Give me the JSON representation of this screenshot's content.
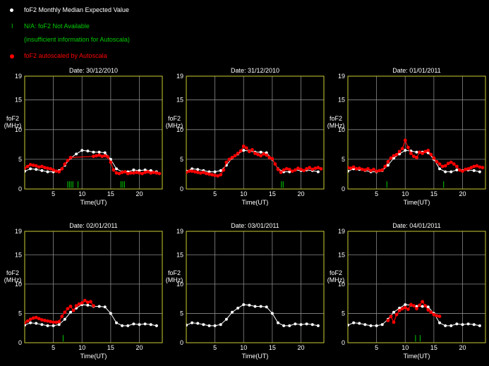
{
  "legend": {
    "median_label": "foF2 Monthly Median Expected Value",
    "na_label": "N/A: foF2 Not Available",
    "na_sub_label": "(insufficient information for Autoscala)",
    "auto_label": "foF2 autoscaled by Autoscala",
    "na_symbol": "I"
  },
  "colors": {
    "median": "#ffffff",
    "autoscaled": "#ff0000",
    "not_available": "#00cc00",
    "axis": "#cccc33",
    "grid": "#8a8a8a",
    "background": "#000000"
  },
  "chart_data": [
    {
      "type": "scatter",
      "title": "Date: 30/12/2010",
      "ylabel": "foF2 (MHz)",
      "xlabel": "Time(UT)",
      "xlim": [
        0,
        24
      ],
      "ylim": [
        0,
        19
      ],
      "xticks": [
        5,
        10,
        15,
        20
      ],
      "yticks": [
        0,
        5,
        10,
        15,
        19
      ],
      "grid": true,
      "series": [
        {
          "name": "foF2 Monthly Median Expected Value",
          "x": [
            0,
            1,
            2,
            3,
            4,
            5,
            6,
            7,
            8,
            9,
            10,
            11,
            12,
            13,
            14,
            15,
            16,
            17,
            18,
            19,
            20,
            21,
            22,
            23
          ],
          "y": [
            3.0,
            3.4,
            3.3,
            3.1,
            2.9,
            2.9,
            3.1,
            4.0,
            5.2,
            5.9,
            6.5,
            6.4,
            6.2,
            6.2,
            6.1,
            5.0,
            3.4,
            2.9,
            2.9,
            3.2,
            3.1,
            3.2,
            3.1,
            2.9
          ]
        },
        {
          "name": "foF2 autoscaled by Autoscala",
          "x": [
            0,
            0.5,
            1,
            1.5,
            2,
            2.5,
            3,
            3.5,
            4,
            4.5,
            5,
            5.5,
            6,
            6.5,
            7,
            7.5,
            8,
            12,
            12.5,
            13,
            13.5,
            14,
            14.5,
            15,
            15.5,
            16,
            16.5,
            17,
            17.5,
            18,
            18.5,
            19,
            19.5,
            20,
            20.5,
            21,
            21.5,
            22,
            22.5,
            23,
            23.5
          ],
          "y": [
            3.5,
            3.8,
            4.1,
            4.0,
            3.9,
            3.7,
            3.8,
            3.6,
            3.5,
            3.4,
            3.2,
            3.0,
            2.9,
            3.4,
            4.2,
            4.8,
            5.3,
            5.5,
            5.6,
            5.7,
            5.5,
            5.6,
            5.4,
            4.5,
            3.2,
            2.7,
            2.6,
            2.8,
            2.9,
            2.6,
            2.7,
            2.7,
            2.8,
            2.7,
            2.6,
            2.8,
            2.9,
            2.7,
            2.8,
            2.7,
            2.6
          ]
        },
        {
          "name": "N/A: foF2 Not Available",
          "x": [
            7.5,
            7.8,
            8.1,
            8.4,
            9.3,
            16.8,
            17.1,
            17.4
          ]
        }
      ]
    },
    {
      "type": "scatter",
      "title": "Date: 31/12/2010",
      "ylabel": "foF2 (MHz)",
      "xlabel": "Time(UT)",
      "xlim": [
        0,
        24
      ],
      "ylim": [
        0,
        19
      ],
      "xticks": [
        5,
        10,
        15,
        20
      ],
      "yticks": [
        0,
        5,
        10,
        15,
        19
      ],
      "grid": true,
      "series": [
        {
          "name": "foF2 Monthly Median Expected Value",
          "x": [
            0,
            1,
            2,
            3,
            4,
            5,
            6,
            7,
            8,
            9,
            10,
            11,
            12,
            13,
            14,
            15,
            16,
            17,
            18,
            19,
            20,
            21,
            22,
            23
          ],
          "y": [
            3.0,
            3.4,
            3.3,
            3.1,
            2.9,
            2.9,
            3.1,
            4.0,
            5.2,
            5.9,
            6.5,
            6.4,
            6.2,
            6.2,
            6.1,
            5.0,
            3.4,
            2.9,
            2.9,
            3.2,
            3.1,
            3.2,
            3.1,
            2.9
          ]
        },
        {
          "name": "foF2 autoscaled by Autoscala",
          "x": [
            0,
            0.5,
            1,
            1.5,
            2,
            2.5,
            3,
            3.5,
            4,
            4.5,
            5,
            5.5,
            6,
            6.5,
            7,
            7.5,
            8,
            8.5,
            9,
            9.5,
            10,
            10.5,
            11,
            11.5,
            12,
            12.5,
            13,
            13.5,
            14,
            14.5,
            15,
            15.5,
            16,
            16.5,
            17,
            17.5,
            18,
            18.5,
            19,
            19.5,
            20,
            20.5,
            21,
            21.5,
            22,
            22.5,
            23,
            23.5
          ],
          "y": [
            2.8,
            3.0,
            3.0,
            2.9,
            2.8,
            2.7,
            2.8,
            2.6,
            2.5,
            2.4,
            2.3,
            2.2,
            2.4,
            3.2,
            4.5,
            5.0,
            5.3,
            5.6,
            6.0,
            6.4,
            7.2,
            6.9,
            6.3,
            6.6,
            6.0,
            5.8,
            5.6,
            5.9,
            5.7,
            5.3,
            5.1,
            4.2,
            3.3,
            2.8,
            3.2,
            3.4,
            3.3,
            3.0,
            3.2,
            3.5,
            3.3,
            3.1,
            3.4,
            3.6,
            3.3,
            3.5,
            3.6,
            3.4
          ]
        },
        {
          "name": "N/A: foF2 Not Available",
          "x": [
            16.6,
            16.9
          ]
        }
      ]
    },
    {
      "type": "scatter",
      "title": "Date: 01/01/2011",
      "ylabel": "foF2 (MHz)",
      "xlabel": "Time(UT)",
      "xlim": [
        0,
        24
      ],
      "ylim": [
        0,
        19
      ],
      "xticks": [
        5,
        10,
        15,
        20
      ],
      "yticks": [
        0,
        5,
        10,
        15,
        19
      ],
      "grid": true,
      "series": [
        {
          "name": "foF2 Monthly Median Expected Value",
          "x": [
            0,
            1,
            2,
            3,
            4,
            5,
            6,
            7,
            8,
            9,
            10,
            11,
            12,
            13,
            14,
            15,
            16,
            17,
            18,
            19,
            20,
            21,
            22,
            23
          ],
          "y": [
            3.0,
            3.4,
            3.3,
            3.1,
            2.9,
            2.9,
            3.1,
            4.0,
            5.2,
            5.9,
            6.5,
            6.4,
            6.2,
            6.2,
            6.1,
            5.0,
            3.4,
            2.9,
            2.9,
            3.2,
            3.1,
            3.2,
            3.1,
            2.9
          ]
        },
        {
          "name": "foF2 autoscaled by Autoscala",
          "x": [
            0,
            0.5,
            1,
            1.5,
            2,
            2.5,
            3,
            3.5,
            4,
            4.5,
            5,
            5.5,
            6,
            6.5,
            7,
            7.5,
            8,
            8.5,
            9,
            9.5,
            10,
            10.5,
            11,
            11.5,
            12,
            12.5,
            13,
            13.5,
            14,
            14.5,
            15,
            15.5,
            16,
            16.5,
            17,
            17.5,
            18,
            18.5,
            19,
            19.5,
            20,
            20.5,
            21,
            21.5,
            22,
            22.5,
            23,
            23.5
          ],
          "y": [
            3.6,
            3.5,
            3.7,
            3.4,
            3.5,
            3.3,
            3.2,
            3.4,
            3.1,
            3.3,
            3.0,
            3.1,
            3.2,
            3.8,
            4.6,
            5.2,
            5.6,
            5.8,
            6.3,
            6.8,
            8.2,
            7.0,
            6.0,
            5.5,
            5.3,
            6.2,
            6.0,
            6.3,
            6.5,
            5.8,
            5.2,
            4.6,
            4.2,
            3.8,
            3.9,
            4.3,
            4.5,
            4.2,
            3.8,
            3.2,
            3.0,
            3.3,
            3.4,
            3.6,
            3.8,
            3.9,
            3.7,
            3.6
          ]
        },
        {
          "name": "N/A: foF2 Not Available",
          "x": [
            6.8,
            16.7
          ]
        }
      ]
    },
    {
      "type": "scatter",
      "title": "Date: 02/01/2011",
      "ylabel": "foF2 (MHz)",
      "xlabel": "Time(UT)",
      "xlim": [
        0,
        24
      ],
      "ylim": [
        0,
        19
      ],
      "xticks": [
        5,
        10,
        15,
        20
      ],
      "yticks": [
        0,
        5,
        10,
        15,
        19
      ],
      "grid": true,
      "series": [
        {
          "name": "foF2 Monthly Median Expected Value",
          "x": [
            0,
            1,
            2,
            3,
            4,
            5,
            6,
            7,
            8,
            9,
            10,
            11,
            12,
            13,
            14,
            15,
            16,
            17,
            18,
            19,
            20,
            21,
            22,
            23
          ],
          "y": [
            3.0,
            3.4,
            3.3,
            3.1,
            2.9,
            2.9,
            3.1,
            4.0,
            5.2,
            5.9,
            6.5,
            6.4,
            6.2,
            6.2,
            6.1,
            5.0,
            3.4,
            2.9,
            2.9,
            3.2,
            3.1,
            3.2,
            3.1,
            2.9
          ]
        },
        {
          "name": "foF2 autoscaled by Autoscala",
          "x": [
            0,
            0.5,
            1,
            1.5,
            2,
            2.5,
            3,
            3.5,
            4,
            4.5,
            5,
            5.5,
            6,
            6.5,
            7,
            7.5,
            8,
            8.5,
            9,
            9.5,
            10,
            10.5,
            11,
            11.5,
            12
          ],
          "y": [
            3.4,
            3.7,
            4.0,
            4.2,
            4.3,
            4.1,
            3.9,
            3.8,
            3.7,
            3.6,
            3.5,
            3.5,
            3.6,
            4.5,
            5.2,
            5.8,
            6.2,
            5.5,
            6.3,
            6.6,
            6.8,
            7.2,
            6.9,
            7.0,
            6.3
          ]
        },
        {
          "name": "N/A: foF2 Not Available",
          "x": [
            6.7
          ]
        }
      ]
    },
    {
      "type": "scatter",
      "title": "Date: 03/01/2011",
      "ylabel": "foF2 (MHz)",
      "xlabel": "Time(UT)",
      "xlim": [
        0,
        24
      ],
      "ylim": [
        0,
        19
      ],
      "xticks": [
        5,
        10,
        15,
        20
      ],
      "yticks": [
        0,
        5,
        10,
        15,
        19
      ],
      "grid": true,
      "series": [
        {
          "name": "foF2 Monthly Median Expected Value",
          "x": [
            0,
            1,
            2,
            3,
            4,
            5,
            6,
            7,
            8,
            9,
            10,
            11,
            12,
            13,
            14,
            15,
            16,
            17,
            18,
            19,
            20,
            21,
            22,
            23
          ],
          "y": [
            3.0,
            3.4,
            3.3,
            3.1,
            2.9,
            2.9,
            3.1,
            4.0,
            5.2,
            5.9,
            6.5,
            6.4,
            6.2,
            6.2,
            6.1,
            5.0,
            3.4,
            2.9,
            2.9,
            3.2,
            3.1,
            3.2,
            3.1,
            2.9
          ]
        },
        {
          "name": "foF2 autoscaled by Autoscala",
          "x": [],
          "y": []
        },
        {
          "name": "N/A: foF2 Not Available",
          "x": []
        }
      ]
    },
    {
      "type": "scatter",
      "title": "Date: 04/01/2011",
      "ylabel": "foF2 (MHz)",
      "xlabel": "Time(UT)",
      "xlim": [
        0,
        24
      ],
      "ylim": [
        0,
        19
      ],
      "xticks": [
        5,
        10,
        15,
        20
      ],
      "yticks": [
        0,
        5,
        10,
        15,
        19
      ],
      "grid": true,
      "series": [
        {
          "name": "foF2 Monthly Median Expected Value",
          "x": [
            0,
            1,
            2,
            3,
            4,
            5,
            6,
            7,
            8,
            9,
            10,
            11,
            12,
            13,
            14,
            15,
            16,
            17,
            18,
            19,
            20,
            21,
            22,
            23
          ],
          "y": [
            3.0,
            3.4,
            3.3,
            3.1,
            2.9,
            2.9,
            3.1,
            4.0,
            5.2,
            5.9,
            6.5,
            6.4,
            6.2,
            6.2,
            6.1,
            5.0,
            3.4,
            2.9,
            2.9,
            3.2,
            3.1,
            3.2,
            3.1,
            2.9
          ]
        },
        {
          "name": "foF2 autoscaled by Autoscala",
          "x": [
            7,
            7.5,
            8,
            8.5,
            9,
            9.5,
            10,
            10.5,
            11,
            11.5,
            12,
            12.5,
            13,
            13.5,
            14,
            14.5,
            15,
            15.5,
            16
          ],
          "y": [
            3.8,
            4.5,
            3.5,
            4.8,
            5.5,
            5.8,
            6.0,
            5.7,
            6.5,
            6.3,
            5.8,
            6.4,
            7.0,
            6.3,
            5.6,
            5.2,
            4.8,
            4.6,
            4.5
          ]
        },
        {
          "name": "N/A: foF2 Not Available",
          "x": [
            11.8,
            12.6
          ]
        }
      ]
    }
  ]
}
